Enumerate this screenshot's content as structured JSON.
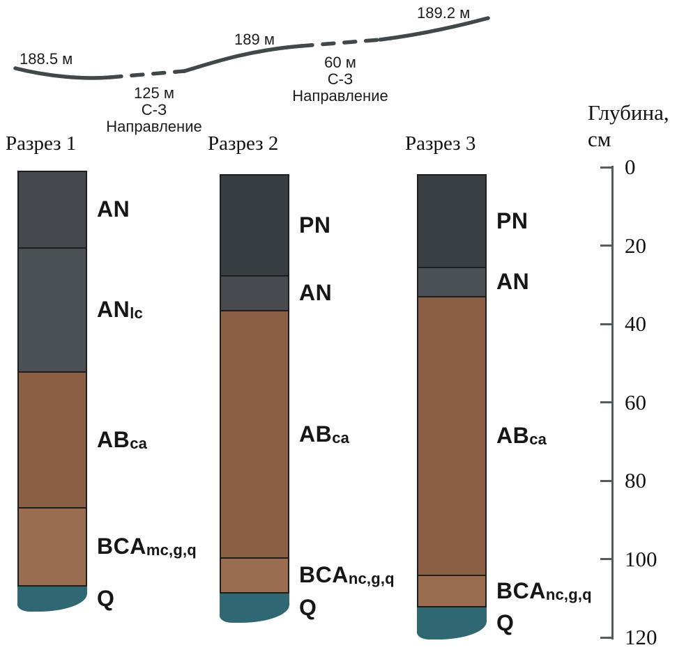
{
  "figure": {
    "terrain": {
      "elevation_labels": [
        {
          "text": "188.5 м"
        },
        {
          "text": "189 м"
        },
        {
          "text": "189.2 м"
        }
      ],
      "segments": [
        {
          "distance": "125 м",
          "direction": "С-З",
          "label": "Направление"
        },
        {
          "distance": "60 м",
          "direction": "С-З",
          "label": "Направление"
        }
      ]
    },
    "depth_axis": {
      "title_line1": "Глубина,",
      "title_line2": "см",
      "ticks": [
        0,
        20,
        40,
        60,
        80,
        100,
        120
      ],
      "max_cm": 120
    },
    "colors": {
      "humus_dark": "#383d41",
      "humus_gray": "#4b5054",
      "carbonate_brown": "#8b5f43",
      "transition_brown": "#9a6d50",
      "bedrock_teal": "#2f6873",
      "terrain_line": "#42474a"
    },
    "profiles": [
      {
        "title": "Разрез 1",
        "horizons": [
          {
            "main": "AN",
            "sub": "",
            "top_cm": 0.9,
            "bottom_cm": 20.4,
            "color": "#45494d"
          },
          {
            "main": "AN",
            "sub": "lc",
            "top_cm": 20.4,
            "bottom_cm": 52.1,
            "color": "#4b5054"
          },
          {
            "main": "AB",
            "sub": "ca",
            "top_cm": 52.1,
            "bottom_cm": 86.8,
            "color": "#8b5f43"
          },
          {
            "main": "BCA",
            "sub": "mc,g,q",
            "top_cm": 86.8,
            "bottom_cm": 106.7,
            "color": "#9a6d50"
          },
          {
            "main": "Q",
            "sub": "",
            "top_cm": 106.7,
            "bottom_cm": 113.5,
            "color": "#2f6873",
            "base": true
          }
        ]
      },
      {
        "title": "Разрез 2",
        "horizons": [
          {
            "main": "PN",
            "sub": "",
            "top_cm": 1.8,
            "bottom_cm": 27.6,
            "color": "#383d41"
          },
          {
            "main": "AN",
            "sub": "",
            "top_cm": 27.6,
            "bottom_cm": 36.4,
            "color": "#474b4f"
          },
          {
            "main": "AB",
            "sub": "ca",
            "top_cm": 36.4,
            "bottom_cm": 99.6,
            "color": "#8b5f43"
          },
          {
            "main": "BCA",
            "sub": "nc,g,q",
            "top_cm": 99.6,
            "bottom_cm": 108.4,
            "color": "#9a6d50"
          },
          {
            "main": "Q",
            "sub": "",
            "top_cm": 108.4,
            "bottom_cm": 116.3,
            "color": "#2f6873",
            "base": true
          }
        ]
      },
      {
        "title": "Разрез 3",
        "horizons": [
          {
            "main": "PN",
            "sub": "",
            "top_cm": 1.8,
            "bottom_cm": 25.4,
            "color": "#3a3f43"
          },
          {
            "main": "AN",
            "sub": "",
            "top_cm": 25.4,
            "bottom_cm": 32.9,
            "color": "#4b5054"
          },
          {
            "main": "AB",
            "sub": "ca",
            "top_cm": 32.9,
            "bottom_cm": 104.0,
            "color": "#8b5f43"
          },
          {
            "main": "BCA",
            "sub": "nc,g,q",
            "top_cm": 104.0,
            "bottom_cm": 112.0,
            "color": "#9a6d50"
          },
          {
            "main": "Q",
            "sub": "",
            "top_cm": 112.0,
            "bottom_cm": 120.5,
            "color": "#2f6873",
            "base": true
          }
        ]
      }
    ]
  }
}
